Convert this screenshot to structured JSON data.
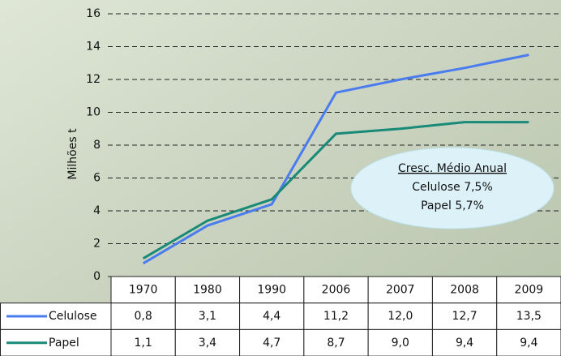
{
  "chart_data": {
    "type": "line",
    "y_label": "Milhões t",
    "categories": [
      "1970",
      "1980",
      "1990",
      "2006",
      "2007",
      "2008",
      "2009"
    ],
    "series": [
      {
        "name": "Celulose",
        "color": "#4a7cf0",
        "values": [
          0.8,
          3.1,
          4.4,
          11.2,
          12.0,
          12.7,
          13.5
        ],
        "value_labels": [
          "0,8",
          "3,1",
          "4,4",
          "11,2",
          "12,0",
          "12,7",
          "13,5"
        ]
      },
      {
        "name": "Papel",
        "color": "#1a8a78",
        "values": [
          1.1,
          3.4,
          4.7,
          8.7,
          9.0,
          9.4,
          9.4
        ],
        "value_labels": [
          "1,1",
          "3,4",
          "4,7",
          "8,7",
          "9,0",
          "9,4",
          "9,4"
        ]
      }
    ],
    "ylim": [
      0,
      16
    ],
    "yticks": [
      0,
      2,
      4,
      6,
      8,
      10,
      12,
      14,
      16
    ],
    "grid": true,
    "annotation": {
      "title": "Cresc. Médio Anual",
      "lines": [
        "Celulose 7,5%",
        "Papel 5,7%"
      ]
    }
  }
}
